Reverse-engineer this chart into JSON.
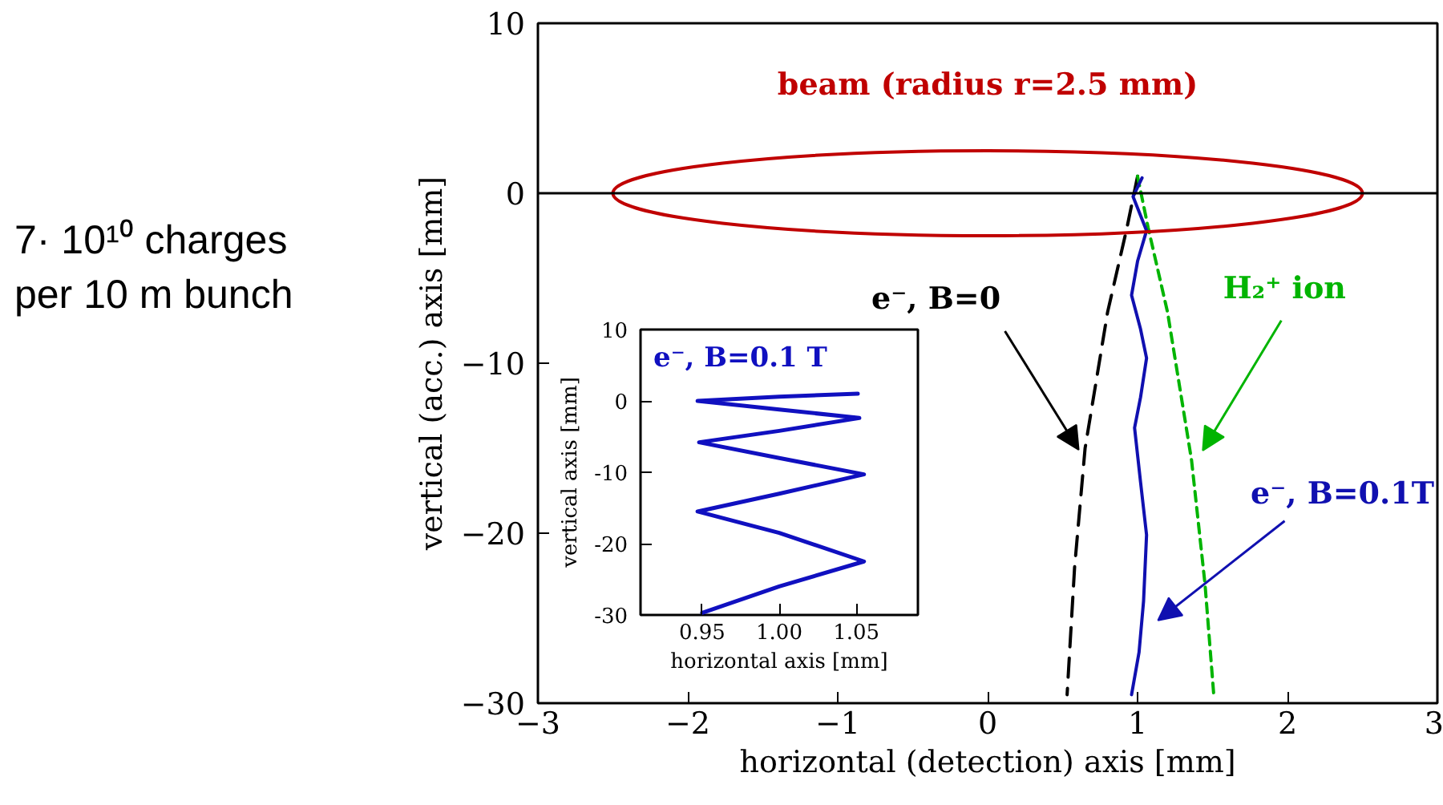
{
  "chart_data": [
    {
      "type": "line",
      "xlabel": "horizontal (detection) axis [mm]",
      "ylabel": "vertical (acc.) axis [mm]",
      "xlim": [
        -3,
        3
      ],
      "ylim": [
        -30,
        10
      ],
      "xticks": [
        {
          "value": -3,
          "label": "−3"
        },
        {
          "value": -2,
          "label": "−2"
        },
        {
          "value": -1,
          "label": "−1"
        },
        0,
        1,
        2,
        3
      ],
      "yticks": [
        10,
        0,
        {
          "value": -10,
          "label": "−10"
        },
        {
          "value": -20,
          "label": "−20"
        },
        {
          "value": -30,
          "label": "−30"
        }
      ],
      "grid": false,
      "ref_lines": [
        {
          "axis": "y",
          "value": 0
        }
      ],
      "annotations": [
        "7· 10¹⁰ charges\nper 10 m bunch",
        "beam (radius r=2.5 mm)"
      ],
      "series": [
        {
          "name": "e⁻, B=0",
          "color": "#000000",
          "line_style": "dashed",
          "x": [
            1.0,
            0.93,
            0.8,
            0.65,
            0.58,
            0.53
          ],
          "values": [
            1,
            -2,
            -7,
            -15,
            -22,
            -29.5
          ]
        },
        {
          "name": "H₂⁺ ion",
          "color": "#00b400",
          "line_style": "dotted",
          "x": [
            1.0,
            1.07,
            1.2,
            1.36,
            1.45,
            1.51
          ],
          "values": [
            1,
            -2,
            -7,
            -15.7,
            -23,
            -29.7
          ]
        },
        {
          "name": "e⁻, B=0.1T",
          "color": "#1010b0",
          "line_style": "solid",
          "x": [
            1.03,
            0.97,
            1.06,
            1.0,
            0.96,
            1.02,
            1.06,
            1.02,
            0.98,
            1.02,
            1.06,
            1.04,
            1.01,
            0.96
          ],
          "values": [
            0.9,
            -0.2,
            -2.2,
            -4,
            -6,
            -8,
            -9.7,
            -12,
            -13.8,
            -17,
            -20.1,
            -24,
            -27,
            -29.5
          ]
        }
      ]
    },
    {
      "type": "line",
      "xlabel": "horizontal axis [mm]",
      "ylabel": "vertical axis [mm]",
      "xlim": [
        0.91,
        1.09
      ],
      "ylim": [
        -30,
        10
      ],
      "xticks": [
        0.95,
        {
          "value": 1.0,
          "label": "1.00"
        },
        1.05
      ],
      "yticks": [
        10,
        0,
        -10,
        -20,
        -30
      ],
      "grid": false,
      "series": [
        {
          "name": "e⁻, B=0.1 T",
          "color": "#1010c0",
          "line_style": "solid",
          "x": [
            1.051,
            1.0,
            0.947,
            1.0,
            1.052,
            1.0,
            0.948,
            1.0,
            1.055,
            1.0,
            0.947,
            1.0,
            1.055,
            1.0,
            0.95
          ],
          "values": [
            1.0,
            0.6,
            0,
            -1.2,
            -2.4,
            -4.2,
            -5.8,
            -8,
            -10.3,
            -13,
            -15.5,
            -18.5,
            -22.5,
            -26,
            -29.7
          ]
        }
      ]
    }
  ]
}
